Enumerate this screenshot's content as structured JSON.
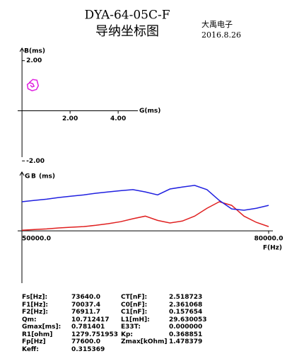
{
  "header": {
    "title": "DYA-64-05C-F",
    "subtitle": "导纳坐标图",
    "company": "大禹电子",
    "date": "2016.8.26"
  },
  "chart_data": [
    {
      "type": "line",
      "x_label": "G(ms)",
      "y_label": "B(ms)",
      "xlim": [
        -0.18,
        4.82
      ],
      "ylim": [
        -1.85,
        2.5
      ],
      "xticks": [
        {
          "value": 2,
          "label": "2.00"
        },
        {
          "value": 4,
          "label": "4.00"
        }
      ],
      "yticks": [
        {
          "value": 2,
          "label": "2.00"
        },
        {
          "value": -2,
          "label": "-2.00"
        }
      ],
      "series": [
        {
          "color": "#e020e0",
          "x": [
            0.3,
            0.45,
            0.62,
            0.68,
            0.6,
            0.42,
            0.25,
            0.22,
            0.32,
            0.45,
            0.5,
            0.42,
            0.35
          ],
          "values": [
            1.12,
            1.25,
            1.22,
            1.0,
            0.85,
            0.8,
            0.88,
            1.05,
            1.12,
            1.08,
            0.98,
            0.95,
            1.02
          ]
        }
      ]
    },
    {
      "type": "line",
      "x_label": "F(Hz)",
      "y_label": "(ms)",
      "xlim": [
        50000,
        80000
      ],
      "ylim": [
        -1.6,
        1.8
      ],
      "xticks": [
        {
          "value": 50000,
          "label": "50000.0"
        },
        {
          "value": 80000,
          "label": "80000.0"
        }
      ],
      "x": [
        50000,
        51500,
        53000,
        54500,
        56000,
        57500,
        59000,
        60500,
        62000,
        63500,
        65000,
        66500,
        68000,
        69500,
        71000,
        72500,
        74000,
        75500,
        77000,
        78500,
        80000
      ],
      "series": [
        {
          "name": "G",
          "color": "#e02020",
          "values": [
            0.02,
            0.04,
            0.06,
            0.09,
            0.11,
            0.13,
            0.17,
            0.22,
            0.28,
            0.37,
            0.45,
            0.32,
            0.24,
            0.3,
            0.45,
            0.69,
            0.89,
            0.78,
            0.45,
            0.26,
            0.13
          ]
        },
        {
          "name": "B",
          "color": "#2020e0",
          "values": [
            0.89,
            0.93,
            0.97,
            1.02,
            1.06,
            1.1,
            1.15,
            1.19,
            1.23,
            1.26,
            1.19,
            1.1,
            1.28,
            1.34,
            1.39,
            1.26,
            0.93,
            0.67,
            0.63,
            0.69,
            0.78
          ]
        }
      ]
    }
  ],
  "params": {
    "rows": [
      [
        "Fs[Hz]:",
        "73640.0",
        "CT[nF]:",
        "2.518723"
      ],
      [
        "F1[Hz]:",
        "70037.4",
        "C0[nF]:",
        "2.361068"
      ],
      [
        "F2[Hz]:",
        "76911.7",
        "C1[nF]:",
        "0.157654"
      ],
      [
        "Qm:",
        "10.712417",
        "L1[mH]:",
        "29.630053"
      ],
      [
        "Gmax[ms]:",
        "0.781401",
        "E33T:",
        "0.000000"
      ],
      [
        "R1[ohm]",
        "1279.751953",
        "Kp:",
        "0.368851"
      ],
      [
        "Fp[Hz]",
        "77600.0",
        "Zmax[kOhm]",
        "1.478379"
      ],
      [
        "Keff:",
        "0.315369"
      ]
    ]
  }
}
